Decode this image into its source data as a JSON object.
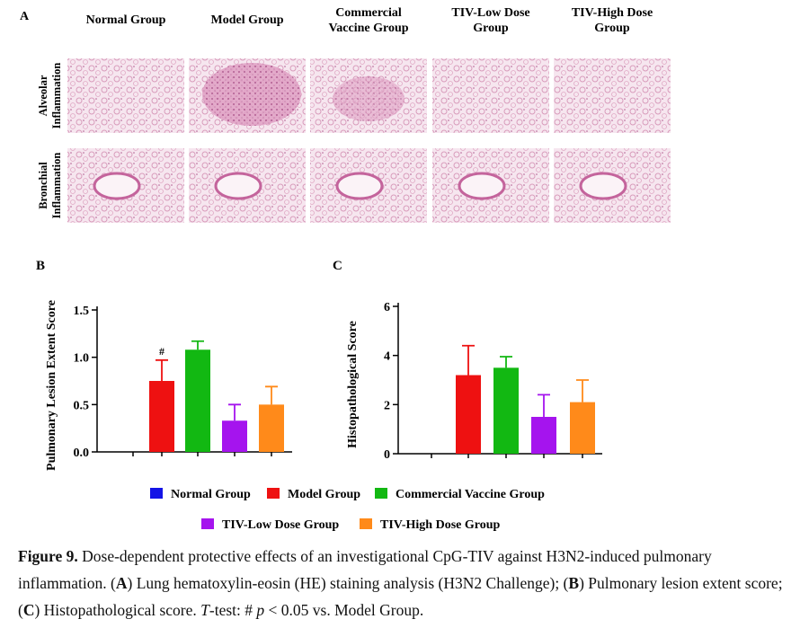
{
  "panel_a": {
    "label": "A",
    "columns": [
      "Normal Group",
      "Model Group",
      "Commercial Vaccine Group",
      "TIV-Low Dose Group",
      "TIV-High Dose Group"
    ],
    "rows": [
      "Alveolar Inflammation",
      "Bronchial Inflammation"
    ]
  },
  "chart_data": [
    {
      "type": "bar",
      "panel": "B",
      "ylabel": "Pulmonary Lesion Extent Score",
      "categories": [
        "Normal Group",
        "Model Group",
        "Commercial Vaccine Group",
        "TIV-Low Dose Group",
        "TIV-High Dose Group"
      ],
      "colors": [
        "#1414e6",
        "#ee1111",
        "#12b812",
        "#a514ee",
        "#ff8a1a"
      ],
      "values": [
        0,
        0.75,
        1.08,
        0.33,
        0.5
      ],
      "errors": [
        0,
        0.22,
        0.09,
        0.17,
        0.19
      ],
      "annotation": "#",
      "ylim": [
        0,
        1.5
      ],
      "yticks": [
        {
          "value": 0,
          "label": "0.0"
        },
        {
          "value": 0.5,
          "label": "0.5"
        },
        {
          "value": 1,
          "label": "1.0"
        },
        {
          "value": 1.5,
          "label": "1.5"
        }
      ]
    },
    {
      "type": "bar",
      "panel": "C",
      "ylabel": "Histopathological Score",
      "categories": [
        "Normal Group",
        "Model Group",
        "Commercial Vaccine Group",
        "TIV-Low Dose Group",
        "TIV-High Dose Group"
      ],
      "colors": [
        "#1414e6",
        "#ee1111",
        "#12b812",
        "#a514ee",
        "#ff8a1a"
      ],
      "values": [
        0,
        3.2,
        3.5,
        1.5,
        2.1
      ],
      "errors": [
        0,
        1.2,
        0.45,
        0.9,
        0.9
      ],
      "ylim": [
        0,
        6
      ],
      "yticks": [
        0,
        2,
        4,
        6
      ]
    }
  ],
  "caption": {
    "parts": [
      "Figure 9.",
      " Dose-dependent protective effects of an investigational CpG-TIV against H3N2-induced pulmonary inflammation. (",
      "A",
      ") Lung hematoxylin-eosin (HE) staining analysis (H3N2 Challenge); (",
      "B",
      ") Pulmonary lesion extent score; (",
      "C",
      ") Histopathological score. ",
      "T",
      "-test: # ",
      "p",
      " < 0.05 vs. Model Group."
    ]
  }
}
